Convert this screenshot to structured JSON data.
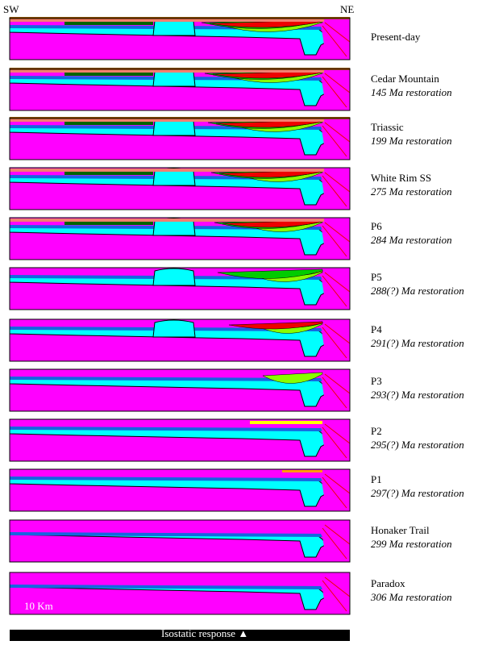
{
  "orientation": {
    "left": "SW",
    "right": "NE"
  },
  "scale_bar": {
    "label": "10 Km"
  },
  "isostatic": {
    "label": "Isostatic response",
    "arrow": "▲"
  },
  "colors": {
    "basement": "#ff00ff",
    "evaporite": "#00ffff",
    "blue_layer": "#1565e0",
    "green": "#00cc00",
    "lime": "#88ff00",
    "yellow": "#ffff00",
    "red": "#ee0000",
    "salmon": "#f08070",
    "dark_green": "#006400",
    "brown": "#8b4513",
    "orange": "#ff9900",
    "black": "#000000"
  },
  "panels": [
    {
      "name": "Present-day",
      "age": ""
    },
    {
      "name": "Cedar Mountain",
      "age": "145 Ma restoration"
    },
    {
      "name": "Triassic",
      "age": "199 Ma restoration"
    },
    {
      "name": "White Rim SS",
      "age": "275 Ma restoration"
    },
    {
      "name": "P6",
      "age": "284 Ma restoration"
    },
    {
      "name": "P5",
      "age": "288(?) Ma restoration"
    },
    {
      "name": "P4",
      "age": "291(?) Ma restoration"
    },
    {
      "name": "P3",
      "age": "293(?) Ma restoration"
    },
    {
      "name": "P2",
      "age": "295(?) Ma restoration"
    },
    {
      "name": "P1",
      "age": "297(?) Ma restoration"
    },
    {
      "name": "Honaker Trail",
      "age": "299 Ma restoration"
    },
    {
      "name": "Paradox",
      "age": "306 Ma restoration"
    }
  ]
}
